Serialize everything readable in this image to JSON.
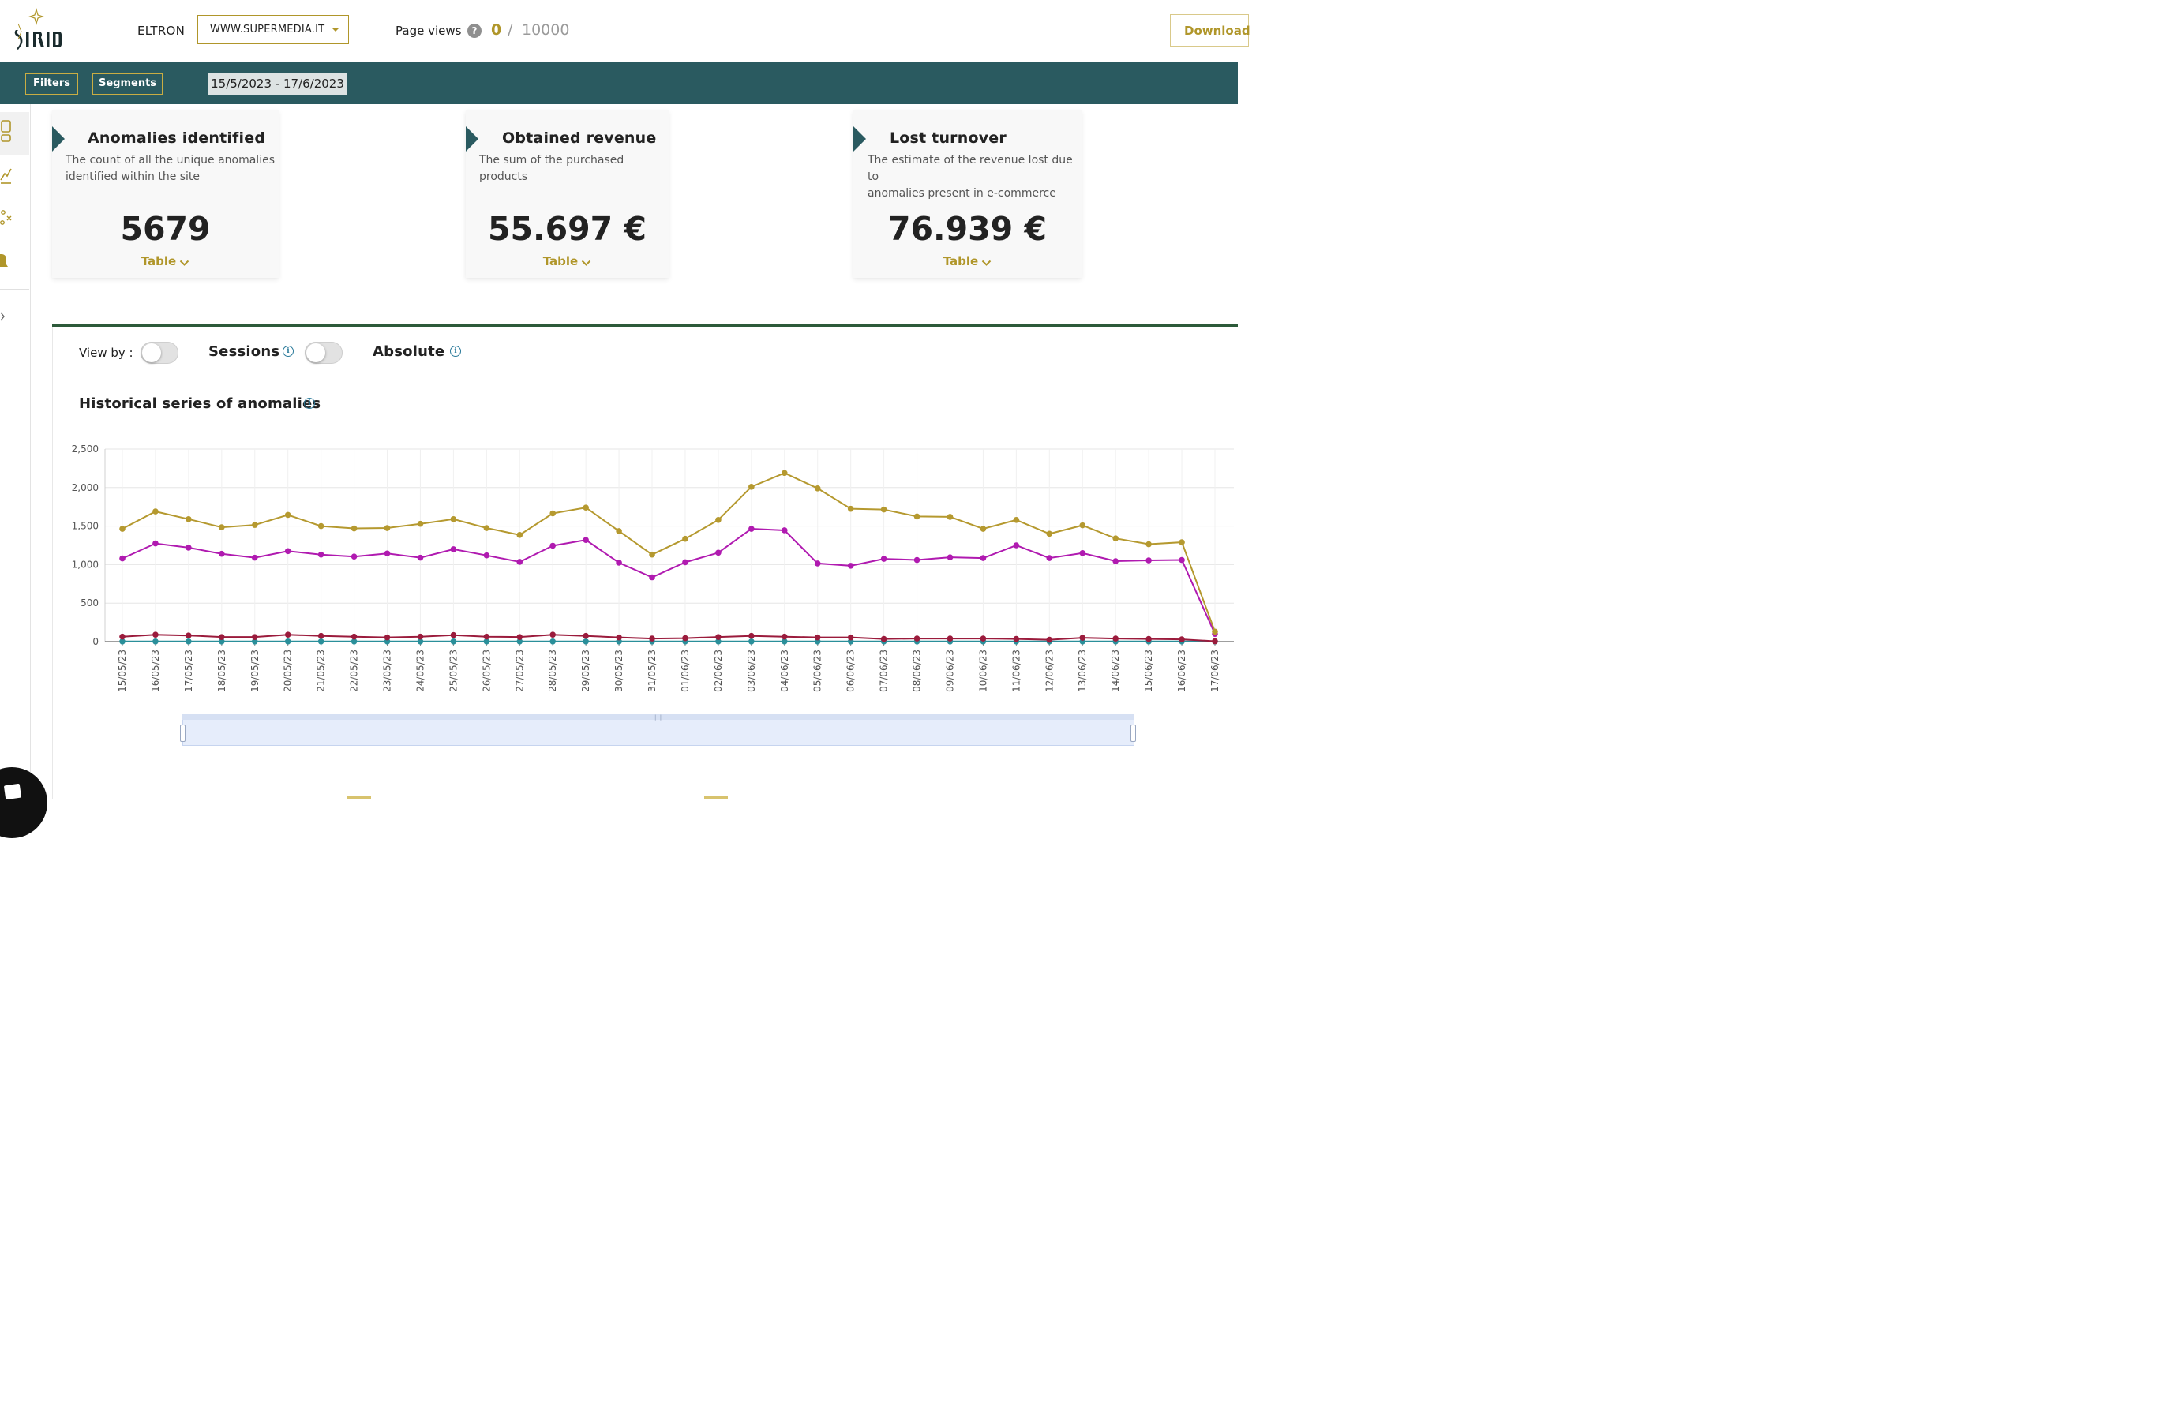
{
  "header": {
    "logo_text": "SIRIO",
    "brand": "ELTRON",
    "site_select": "WWW.SUPERMEDIA.IT",
    "page_views_label": "Page views",
    "page_views_help": "?",
    "page_views_used": "0",
    "page_views_sep": "/",
    "page_views_limit": "10000",
    "download_label": "Download"
  },
  "filterbar": {
    "filters_label": "Filters",
    "segments_label": "Segments",
    "date_range": "15/5/2023 - 17/6/2023"
  },
  "sidebar": {
    "icons": [
      "dashboard-icon",
      "trend-chart-icon",
      "anomaly-scatter-icon",
      "bell-icon",
      "expand-chevron-icon"
    ]
  },
  "cards": [
    {
      "title": "Anomalies identified",
      "description_1": "The count of all the unique anomalies",
      "description_2": "identified within the site",
      "value": "5679",
      "table_label": "Table"
    },
    {
      "title": "Obtained revenue",
      "description_1": "The sum of the purchased products",
      "description_2": "",
      "value": "55.697 €",
      "table_label": "Table"
    },
    {
      "title": "Lost turnover",
      "description_1": "The estimate of the revenue lost due to",
      "description_2": "anomalies present in e-commerce",
      "value": "76.939 €",
      "table_label": "Table"
    }
  ],
  "controls": {
    "view_by_label": "View by :",
    "sessions_label": "Sessions",
    "absolute_label": "Absolute",
    "info_glyph": "i"
  },
  "chart_title": "Historical series of anomalies",
  "colors": {
    "accent_gold": "#b0962a",
    "filter_bar": "#2a5a60",
    "panel_rule": "#2d5a3a",
    "series_gold": "#b5992f",
    "series_magenta": "#b01ab0",
    "series_crimson": "#9b1b3c",
    "series_teal": "#2a8f9a"
  },
  "chart_data": {
    "type": "line",
    "title": "Historical series of anomalies",
    "xlabel": "",
    "ylabel": "",
    "ylim": [
      0,
      2500
    ],
    "yticks": [
      0,
      500,
      1000,
      1500,
      2000,
      2500
    ],
    "ytick_labels": [
      "0",
      "500",
      "1,000",
      "1,500",
      "2,000",
      "2,500"
    ],
    "grid": true,
    "legend": "none",
    "categories": [
      "15/05/23",
      "16/05/23",
      "17/05/23",
      "18/05/23",
      "19/05/23",
      "20/05/23",
      "21/05/23",
      "22/05/23",
      "23/05/23",
      "24/05/23",
      "25/05/23",
      "26/05/23",
      "27/05/23",
      "28/05/23",
      "29/05/23",
      "30/05/23",
      "31/05/23",
      "01/06/23",
      "02/06/23",
      "03/06/23",
      "04/06/23",
      "05/06/23",
      "06/06/23",
      "07/06/23",
      "08/06/23",
      "09/06/23",
      "10/06/23",
      "11/06/23",
      "12/06/23",
      "13/06/23",
      "14/06/23",
      "15/06/23",
      "16/06/23",
      "17/06/23"
    ],
    "series": [
      {
        "color": "#b5992f",
        "values": [
          1465,
          1690,
          1590,
          1485,
          1515,
          1645,
          1500,
          1470,
          1475,
          1530,
          1590,
          1475,
          1385,
          1665,
          1740,
          1435,
          1130,
          1335,
          1580,
          2010,
          2190,
          1990,
          1725,
          1715,
          1625,
          1620,
          1465,
          1580,
          1400,
          1510,
          1340,
          1265,
          1290,
          130
        ]
      },
      {
        "color": "#b01ab0",
        "values": [
          1080,
          1275,
          1220,
          1140,
          1090,
          1175,
          1130,
          1105,
          1145,
          1090,
          1200,
          1120,
          1035,
          1245,
          1320,
          1025,
          835,
          1030,
          1155,
          1465,
          1445,
          1015,
          985,
          1075,
          1060,
          1095,
          1085,
          1250,
          1085,
          1150,
          1045,
          1055,
          1060,
          100
        ]
      },
      {
        "color": "#9b1b3c",
        "values": [
          65,
          90,
          80,
          60,
          60,
          90,
          75,
          65,
          55,
          65,
          85,
          65,
          60,
          90,
          75,
          55,
          40,
          45,
          60,
          75,
          65,
          55,
          55,
          35,
          40,
          40,
          40,
          35,
          25,
          50,
          40,
          35,
          30,
          5
        ]
      },
      {
        "color": "#2a8f9a",
        "values": [
          2,
          2,
          2,
          2,
          2,
          2,
          2,
          2,
          2,
          2,
          2,
          2,
          2,
          2,
          2,
          2,
          2,
          2,
          2,
          2,
          2,
          2,
          2,
          2,
          2,
          2,
          2,
          2,
          2,
          2,
          2,
          2,
          2,
          2
        ]
      }
    ],
    "range_slider": {
      "start": "15/05/23",
      "end": "17/06/23"
    }
  }
}
